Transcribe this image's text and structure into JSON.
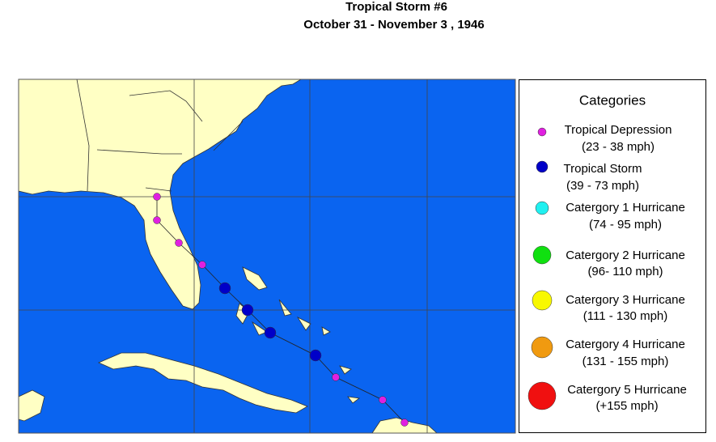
{
  "header": {
    "title": "Tropical Storm #6",
    "subtitle": "October 31 - November 3 , 1946"
  },
  "legend": {
    "title": "Categories",
    "items": [
      {
        "name": "Tropical Depression",
        "range": "(23 - 38 mph)"
      },
      {
        "name": "Tropical Storm",
        "range": "(39 - 73 mph)"
      },
      {
        "name": "Catergory 1 Hurricane",
        "range": "(74 - 95 mph)"
      },
      {
        "name": "Catergory 2 Hurricane",
        "range": "(96- 110 mph)"
      },
      {
        "name": "Catergory 3 Hurricane",
        "range": "(111 - 130 mph)"
      },
      {
        "name": "Catergory 4 Hurricane",
        "range": "(131 - 155 mph)"
      },
      {
        "name": "Catergory 5 Hurricane",
        "range": "(+155 mph)"
      }
    ]
  }
}
